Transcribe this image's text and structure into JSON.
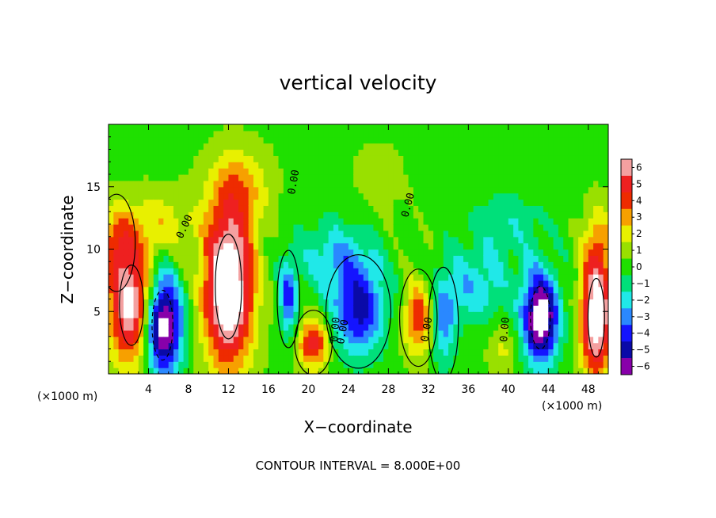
{
  "chart_data": {
    "type": "heatmap",
    "title": "vertical velocity",
    "xlabel": "X−coordinate",
    "ylabel": "Z−coordinate",
    "x_unit_left": "(×1000 m)",
    "x_unit_right": "(×1000 m)",
    "xlim": [
      0,
      50
    ],
    "ylim": [
      0,
      20
    ],
    "x_ticks": [
      4,
      8,
      12,
      16,
      20,
      24,
      28,
      32,
      36,
      40,
      44,
      48
    ],
    "x_tick_labels": [
      "4",
      "8",
      "12",
      "16",
      "20",
      "24",
      "28",
      "32",
      "36",
      "40",
      "44",
      "48"
    ],
    "y_ticks": [
      5,
      10,
      15
    ],
    "y_tick_labels": [
      "5",
      "10",
      "15"
    ],
    "footer": "CONTOUR INTERVAL = 8.000E+00",
    "contour_labels": [
      "0.00",
      "0.00",
      "0.00",
      "0.00",
      "0.00",
      "0.00",
      "0.00"
    ],
    "colorbar": {
      "levels": [
        6,
        5,
        4,
        3,
        2,
        1,
        0,
        -1,
        -2,
        -3,
        -4,
        -5,
        -6
      ],
      "labels": [
        "6",
        "5",
        "4",
        "3",
        "2",
        "1",
        "0",
        "−1",
        "−2",
        "−3",
        "−4",
        "−5",
        "−6"
      ],
      "colors": [
        "#f4a0a0",
        "#ee2020",
        "#ee2b00",
        "#f7a000",
        "#e8f000",
        "#99e000",
        "#1fe000",
        "#00e07a",
        "#20e8e8",
        "#2a88ff",
        "#1414ff",
        "#0a0aa8",
        "#8800aa"
      ]
    },
    "features": [
      {
        "x": 2.3,
        "z": 5.5,
        "wx": 2.2,
        "wz": 4.6,
        "w": 7
      },
      {
        "x": 5.4,
        "z": 3.9,
        "wx": 1.9,
        "wz": 4.0,
        "w": -8
      },
      {
        "x": 12.0,
        "z": 7.0,
        "wx": 2.4,
        "wz": 6.0,
        "w": 9
      },
      {
        "x": 13.0,
        "z": 15.0,
        "wx": 3.0,
        "wz": 3.0,
        "w": 2.5
      },
      {
        "x": 5.0,
        "z": 12.0,
        "wx": 3.5,
        "wz": 2.5,
        "w": 2.0
      },
      {
        "x": 0.8,
        "z": 10.5,
        "wx": 1.5,
        "wz": 3.0,
        "w": 3.0
      },
      {
        "x": 18.0,
        "z": 6.0,
        "wx": 0.9,
        "wz": 3.0,
        "w": -4
      },
      {
        "x": 20.5,
        "z": 2.5,
        "wx": 1.5,
        "wz": 2.0,
        "w": 5
      },
      {
        "x": 25.0,
        "z": 5.0,
        "wx": 2.6,
        "wz": 3.5,
        "w": -5
      },
      {
        "x": 23.0,
        "z": 9.5,
        "wx": 4.0,
        "wz": 3.0,
        "w": -2.5
      },
      {
        "x": 31.0,
        "z": 4.5,
        "wx": 1.5,
        "wz": 3.0,
        "w": 4
      },
      {
        "x": 33.5,
        "z": 4.0,
        "wx": 1.2,
        "wz": 3.5,
        "w": -3
      },
      {
        "x": 36.5,
        "z": 7.0,
        "wx": 3.5,
        "wz": 3.0,
        "w": -2.5
      },
      {
        "x": 39.5,
        "z": 2.0,
        "wx": 1.5,
        "wz": 2.0,
        "w": 1.5
      },
      {
        "x": 43.2,
        "z": 4.5,
        "wx": 1.8,
        "wz": 3.6,
        "w": -8
      },
      {
        "x": 48.8,
        "z": 4.5,
        "wx": 1.5,
        "wz": 4.5,
        "w": 8
      },
      {
        "x": 49.0,
        "z": 10.5,
        "wx": 1.5,
        "wz": 3.0,
        "w": 2.5
      },
      {
        "x": 27.0,
        "z": 15.0,
        "wx": 3.0,
        "wz": 4.0,
        "w": 0.6
      },
      {
        "x": 40.0,
        "z": 12.0,
        "wx": 4.0,
        "wz": 3.0,
        "w": -1.5
      }
    ]
  }
}
